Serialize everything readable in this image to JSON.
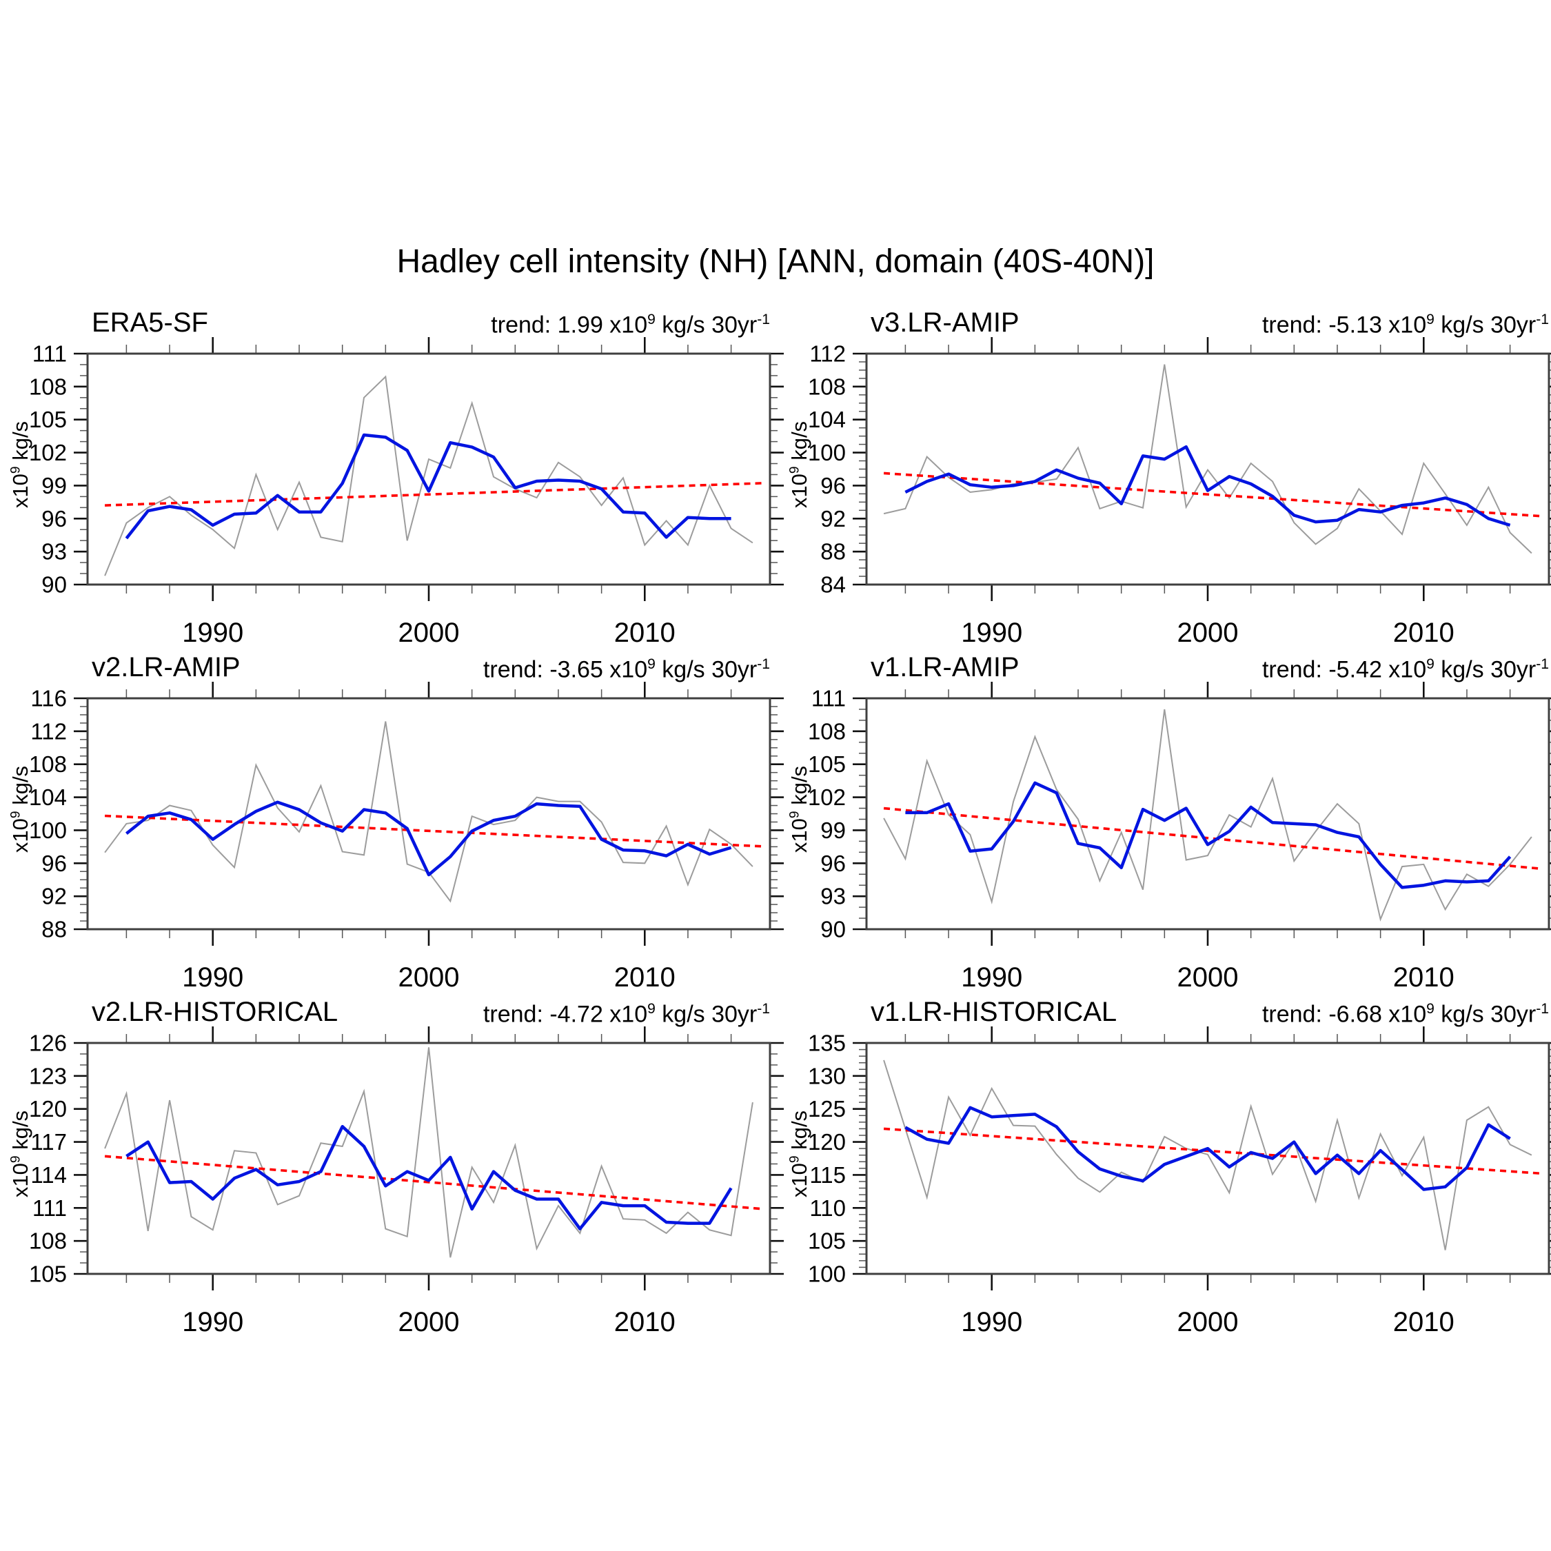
{
  "main_title": "Hadley cell intensity (NH) [ANN, domain (40S-40N)]",
  "axis": {
    "y_unit_base": "x10",
    "y_unit_sup": "9",
    "y_unit_rest": " kg/s",
    "xtick_labels": [
      "1990",
      "2000",
      "2010"
    ]
  },
  "series_colors": {
    "annual_gray": "#9c9c9c",
    "smoothed_blue": "#0014e0",
    "trend_red": "#ff0000",
    "frame": "#3f3f3f"
  },
  "chart_data": [
    {
      "type": "line",
      "title": "ERA5-SF",
      "trend_per_30yr": 1.99,
      "trend_prefix": "trend: 1.99 x10",
      "trend_sup1": "9",
      "trend_mid": " kg/s 30yr",
      "trend_sup2": "-1",
      "xlim": [
        1984.2,
        2015.8
      ],
      "xtick_major": [
        1990,
        2000,
        2010
      ],
      "xtick_minor_start": 1986,
      "xtick_minor_end": 2014,
      "xtick_minor_step": 2,
      "ylim": [
        90,
        111
      ],
      "ytick_major_step": 3,
      "ytick_minor_step": 1,
      "x_start_year": 1985,
      "annual": [
        90.8,
        95.6,
        97.0,
        98.0,
        96.3,
        95.0,
        93.3,
        100.0,
        95.0,
        99.3,
        94.3,
        93.9,
        107.0,
        108.9,
        94.0,
        101.4,
        100.6,
        106.5,
        99.8,
        98.7,
        97.9,
        101.1,
        99.8,
        97.2,
        99.7,
        93.6,
        95.8,
        93.6,
        99.0,
        95.1,
        93.8
      ],
      "smoothed": {
        "start_year": 1986,
        "values": [
          94.2,
          96.7,
          97.1,
          96.8,
          95.4,
          96.4,
          96.5,
          98.1,
          96.6,
          96.6,
          99.2,
          103.6,
          103.4,
          102.2,
          98.5,
          102.9,
          102.5,
          101.6,
          98.8,
          99.4,
          99.5,
          99.4,
          98.7,
          96.6,
          96.5,
          94.3,
          96.1,
          96.0,
          96.0
        ]
      },
      "trend_line": {
        "y_1985": 97.2,
        "y_2015": 99.19
      }
    },
    {
      "type": "line",
      "title": "v3.LR-AMIP",
      "trend_per_30yr": -5.13,
      "trend_prefix": "trend: -5.13 x10",
      "trend_sup1": "9",
      "trend_mid": " kg/s 30yr",
      "trend_sup2": "-1",
      "xlim": [
        1984.2,
        2015.8
      ],
      "xtick_major": [
        1990,
        2000,
        2010
      ],
      "xtick_minor_start": 1986,
      "xtick_minor_end": 2014,
      "xtick_minor_step": 2,
      "ylim": [
        84,
        112
      ],
      "ytick_major_step": 4,
      "ytick_minor_step": 1,
      "x_start_year": 1985,
      "annual": [
        92.6,
        93.2,
        99.5,
        97.0,
        95.2,
        95.5,
        96.2,
        96.4,
        96.8,
        100.6,
        93.2,
        94.1,
        93.3,
        110.7,
        93.4,
        97.9,
        94.5,
        98.7,
        96.5,
        91.5,
        88.9,
        90.8,
        95.6,
        92.9,
        90.1,
        98.7,
        95.0,
        91.2,
        95.8,
        90.3,
        87.8
      ],
      "smoothed": {
        "start_year": 1986,
        "values": [
          95.2,
          96.5,
          97.4,
          96.1,
          95.8,
          96.0,
          96.5,
          97.9,
          96.9,
          96.3,
          93.8,
          99.6,
          99.2,
          100.7,
          95.4,
          97.1,
          96.2,
          94.7,
          92.4,
          91.6,
          91.8,
          93.1,
          92.8,
          93.6,
          93.9,
          94.5,
          93.7,
          92.0,
          91.2
        ]
      },
      "trend_line": {
        "y_1985": 97.5,
        "y_2015": 92.37
      }
    },
    {
      "type": "line",
      "title": "v2.LR-AMIP",
      "trend_per_30yr": -3.65,
      "trend_prefix": "trend: -3.65 x10",
      "trend_sup1": "9",
      "trend_mid": " kg/s 30yr",
      "trend_sup2": "-1",
      "xlim": [
        1984.2,
        2015.8
      ],
      "xtick_major": [
        1990,
        2000,
        2010
      ],
      "xtick_minor_start": 1986,
      "xtick_minor_end": 2014,
      "xtick_minor_step": 2,
      "ylim": [
        88,
        116
      ],
      "ytick_major_step": 4,
      "ytick_minor_step": 1,
      "x_start_year": 1985,
      "annual": [
        97.3,
        100.8,
        101.2,
        103.0,
        102.4,
        98.2,
        95.5,
        107.9,
        102.7,
        99.8,
        105.4,
        97.4,
        97.0,
        113.2,
        95.9,
        94.9,
        91.4,
        101.7,
        100.7,
        101.2,
        104.0,
        103.5,
        103.5,
        101.0,
        96.1,
        96.0,
        100.5,
        93.4,
        100.1,
        98.3,
        95.6
      ],
      "smoothed": {
        "start_year": 1986,
        "values": [
          99.6,
          101.7,
          102.1,
          101.3,
          98.9,
          100.7,
          102.3,
          103.4,
          102.5,
          100.9,
          99.9,
          102.5,
          102.1,
          100.2,
          94.6,
          96.8,
          99.9,
          101.2,
          101.7,
          103.2,
          103.0,
          102.9,
          98.9,
          97.6,
          97.5,
          96.9,
          98.3,
          97.1,
          97.9
        ]
      },
      "trend_line": {
        "y_1985": 101.75,
        "y_2015": 98.1
      }
    },
    {
      "type": "line",
      "title": "v1.LR-AMIP",
      "trend_per_30yr": -5.42,
      "trend_prefix": "trend: -5.42 x10",
      "trend_sup1": "9",
      "trend_mid": " kg/s 30yr",
      "trend_sup2": "-1",
      "xlim": [
        1984.2,
        2015.8
      ],
      "xtick_major": [
        1990,
        2000,
        2010
      ],
      "xtick_minor_start": 1986,
      "xtick_minor_end": 2014,
      "xtick_minor_step": 2,
      "ylim": [
        90,
        111
      ],
      "ytick_major_step": 3,
      "ytick_minor_step": 1,
      "x_start_year": 1985,
      "annual": [
        100.1,
        96.4,
        105.3,
        100.4,
        98.6,
        92.5,
        101.6,
        107.5,
        102.7,
        100.0,
        94.4,
        98.8,
        93.6,
        110.0,
        96.3,
        96.7,
        100.4,
        99.3,
        103.7,
        96.2,
        98.9,
        101.4,
        99.6,
        90.9,
        95.7,
        95.9,
        91.8,
        95.0,
        93.9,
        95.9,
        98.4
      ],
      "smoothed": {
        "start_year": 1986,
        "values": [
          100.6,
          100.6,
          101.4,
          97.1,
          97.3,
          99.8,
          103.3,
          102.4,
          97.8,
          97.4,
          95.6,
          100.9,
          99.9,
          101.0,
          97.7,
          98.9,
          101.1,
          99.7,
          99.6,
          99.5,
          98.8,
          98.4,
          95.9,
          93.8,
          94.0,
          94.4,
          94.3,
          94.4,
          96.6
        ]
      },
      "trend_line": {
        "y_1985": 101.0,
        "y_2015": 95.58
      }
    },
    {
      "type": "line",
      "title": "v2.LR-HISTORICAL",
      "trend_per_30yr": -4.72,
      "trend_prefix": "trend: -4.72 x10",
      "trend_sup1": "9",
      "trend_mid": " kg/s 30yr",
      "trend_sup2": "-1",
      "xlim": [
        1984.2,
        2015.8
      ],
      "xtick_major": [
        1990,
        2000,
        2010
      ],
      "xtick_minor_start": 1986,
      "xtick_minor_end": 2014,
      "xtick_minor_step": 2,
      "ylim": [
        105,
        126
      ],
      "ytick_major_step": 3,
      "ytick_minor_step": 1,
      "x_start_year": 1985,
      "annual": [
        116.4,
        121.4,
        108.9,
        120.8,
        110.2,
        109.0,
        116.2,
        116.0,
        111.3,
        112.1,
        116.9,
        116.6,
        121.6,
        109.1,
        108.4,
        125.6,
        106.5,
        114.7,
        111.5,
        116.7,
        107.3,
        111.2,
        108.7,
        114.8,
        110.0,
        109.9,
        108.7,
        110.6,
        109.0,
        108.5,
        120.6
      ],
      "smoothed": {
        "start_year": 1986,
        "values": [
          115.7,
          117.0,
          113.3,
          113.4,
          111.8,
          113.7,
          114.5,
          113.1,
          113.4,
          114.3,
          118.4,
          116.6,
          113.0,
          114.3,
          113.5,
          115.6,
          110.9,
          114.3,
          112.6,
          111.8,
          111.8,
          109.1,
          111.5,
          111.2,
          111.2,
          109.7,
          109.6,
          109.6,
          112.8
        ]
      },
      "trend_line": {
        "y_1985": 115.7,
        "y_2015": 110.98
      }
    },
    {
      "type": "line",
      "title": "v1.LR-HISTORICAL",
      "trend_per_30yr": -6.68,
      "trend_prefix": "trend: -6.68 x10",
      "trend_sup1": "9",
      "trend_mid": " kg/s 30yr",
      "trend_sup2": "-1",
      "xlim": [
        1984.2,
        2015.8
      ],
      "xtick_major": [
        1990,
        2000,
        2010
      ],
      "xtick_minor_start": 1986,
      "xtick_minor_end": 2014,
      "xtick_minor_step": 2,
      "ylim": [
        100,
        135
      ],
      "ytick_major_step": 5,
      "ytick_minor_step": 1,
      "x_start_year": 1985,
      "annual": [
        132.4,
        122.0,
        111.6,
        126.8,
        121.0,
        128.1,
        122.5,
        122.4,
        118.1,
        114.5,
        112.4,
        115.4,
        113.9,
        120.8,
        119.0,
        118.1,
        112.3,
        125.4,
        115.1,
        120.0,
        111.0,
        123.3,
        111.5,
        121.2,
        114.9,
        120.7,
        103.6,
        123.3,
        125.3,
        119.6,
        118.0
      ],
      "smoothed": {
        "start_year": 1986,
        "values": [
          122.2,
          120.4,
          119.8,
          125.2,
          123.8,
          124.0,
          124.2,
          122.3,
          118.5,
          115.9,
          114.8,
          114.1,
          116.6,
          117.8,
          119.0,
          116.2,
          118.4,
          117.5,
          120.0,
          115.2,
          118.0,
          115.2,
          118.7,
          115.8,
          112.8,
          113.2,
          116.1,
          122.6,
          120.5
        ]
      },
      "trend_line": {
        "y_1985": 122.0,
        "y_2015": 115.32
      }
    }
  ]
}
